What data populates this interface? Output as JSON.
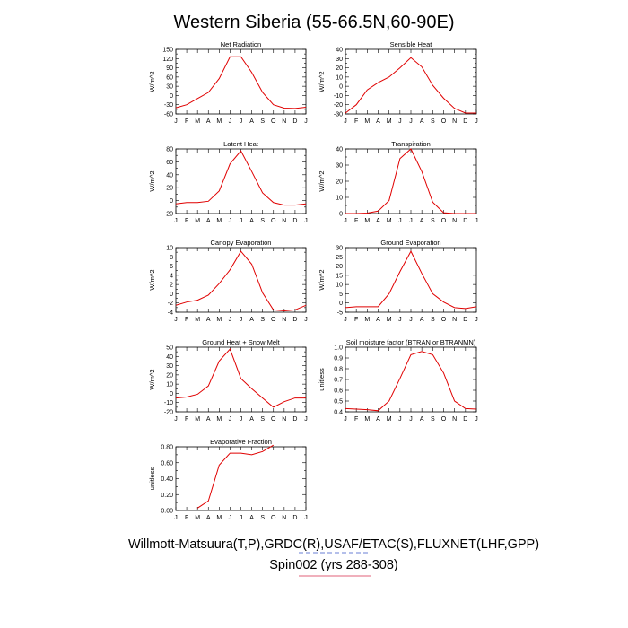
{
  "title": "Western Siberia (55-66.5N,60-90E)",
  "footer": {
    "line1": "Willmott-Matsuura(T,P),GRDC(R),USAF/ETAC(S),FLUXNET(LHF,GPP)",
    "line2": "Spin002 (yrs 288-308)"
  },
  "colors": {
    "series": "#e00000",
    "footer_line1_rule": "#3a56c7",
    "footer_line2_rule": "#e0607a"
  },
  "chart_data": [
    {
      "type": "line",
      "title": "Net Radiation",
      "ylabel": "W/m^2",
      "categories": [
        "J",
        "F",
        "M",
        "A",
        "M",
        "J",
        "J",
        "A",
        "S",
        "O",
        "N",
        "D",
        "J"
      ],
      "ylim": [
        -60,
        150
      ],
      "yticks": [
        -60,
        -45,
        -30,
        -15,
        0,
        15,
        30,
        45,
        60,
        75,
        90,
        105,
        120,
        135,
        150
      ],
      "ytick_labels": [
        "-60",
        "",
        "-30",
        "",
        "0",
        "",
        "30",
        "",
        "60",
        "",
        "90",
        "",
        "120",
        "",
        "150"
      ],
      "series": [
        {
          "values": [
            -40,
            -30,
            -10,
            10,
            55,
            126,
            126,
            75,
            10,
            -30,
            -41,
            -42,
            -38
          ]
        }
      ]
    },
    {
      "type": "line",
      "title": "Sensible Heat",
      "ylabel": "W/m^2",
      "categories": [
        "J",
        "F",
        "M",
        "A",
        "M",
        "J",
        "J",
        "A",
        "S",
        "O",
        "N",
        "D",
        "J"
      ],
      "ylim": [
        -30,
        40
      ],
      "yticks": [
        -30,
        -25,
        -20,
        -15,
        -10,
        -5,
        0,
        5,
        10,
        15,
        20,
        25,
        30,
        35,
        40
      ],
      "ytick_labels": [
        "-30",
        "",
        "-20",
        "",
        "-10",
        "",
        "0",
        "",
        "10",
        "",
        "20",
        "",
        "30",
        "",
        "40"
      ],
      "series": [
        {
          "values": [
            -29,
            -20,
            -4,
            4,
            10,
            20,
            31,
            21,
            1,
            -13,
            -24,
            -29,
            -29
          ]
        }
      ]
    },
    {
      "type": "line",
      "title": "Latent Heat",
      "ylabel": "W/m^2",
      "categories": [
        "J",
        "F",
        "M",
        "A",
        "M",
        "J",
        "J",
        "A",
        "S",
        "O",
        "N",
        "D",
        "J"
      ],
      "ylim": [
        -20,
        80
      ],
      "yticks": [
        -20,
        -10,
        0,
        10,
        20,
        30,
        40,
        50,
        60,
        70,
        80
      ],
      "ytick_labels": [
        "-20",
        "",
        "0",
        "",
        "20",
        "",
        "40",
        "",
        "60",
        "",
        "80"
      ],
      "series": [
        {
          "values": [
            -5,
            -3,
            -3,
            -1,
            15,
            57,
            77,
            45,
            12,
            -3,
            -7,
            -7,
            -5
          ]
        }
      ]
    },
    {
      "type": "line",
      "title": "Transpiration",
      "ylabel": "W/m^2",
      "categories": [
        "J",
        "F",
        "M",
        "A",
        "M",
        "J",
        "J",
        "A",
        "S",
        "O",
        "N",
        "D",
        "J"
      ],
      "ylim": [
        0,
        40
      ],
      "yticks": [
        0,
        5,
        10,
        15,
        20,
        25,
        30,
        35,
        40
      ],
      "ytick_labels": [
        "0",
        "",
        "10",
        "",
        "20",
        "",
        "30",
        "",
        "40"
      ],
      "series": [
        {
          "values": [
            0,
            0,
            0.3,
            1.5,
            8,
            34,
            40,
            26,
            7,
            0.5,
            0,
            0,
            0
          ]
        }
      ]
    },
    {
      "type": "line",
      "title": "Canopy Evaporation",
      "ylabel": "W/m^2",
      "categories": [
        "J",
        "F",
        "M",
        "A",
        "M",
        "J",
        "J",
        "A",
        "S",
        "O",
        "N",
        "D",
        "J"
      ],
      "ylim": [
        -4,
        10
      ],
      "yticks": [
        -4,
        -3,
        -2,
        -1,
        0,
        1,
        2,
        3,
        4,
        5,
        6,
        7,
        8,
        9,
        10
      ],
      "ytick_labels": [
        "-4",
        "",
        "-2",
        "",
        "0",
        "",
        "2",
        "",
        "4",
        "",
        "6",
        "",
        "8",
        "",
        "10"
      ],
      "series": [
        {
          "values": [
            -2.5,
            -1.8,
            -1.4,
            -0.3,
            2.2,
            5.2,
            9.2,
            6.4,
            0.2,
            -3.5,
            -3.7,
            -3.5,
            -2.5
          ]
        }
      ]
    },
    {
      "type": "line",
      "title": "Ground Evaporation",
      "ylabel": "W/m^2",
      "categories": [
        "J",
        "F",
        "M",
        "A",
        "M",
        "J",
        "J",
        "A",
        "S",
        "O",
        "N",
        "D",
        "J"
      ],
      "ylim": [
        -5,
        30
      ],
      "yticks": [
        -5,
        0,
        5,
        10,
        15,
        20,
        25,
        30
      ],
      "ytick_labels": [
        "-5",
        "0",
        "5",
        "10",
        "15",
        "20",
        "25",
        "30"
      ],
      "series": [
        {
          "values": [
            -2.5,
            -2,
            -2,
            -2,
            5,
            17,
            28,
            16,
            5,
            0.5,
            -2.5,
            -3,
            -2
          ]
        }
      ]
    },
    {
      "type": "line",
      "title": "Ground Heat + Snow Melt",
      "ylabel": "W/m^2",
      "categories": [
        "J",
        "F",
        "M",
        "A",
        "M",
        "J",
        "J",
        "A",
        "S",
        "O",
        "N",
        "D",
        "J"
      ],
      "ylim": [
        -20,
        50
      ],
      "yticks": [
        -20,
        -15,
        -10,
        -5,
        0,
        5,
        10,
        15,
        20,
        25,
        30,
        35,
        40,
        45,
        50
      ],
      "ytick_labels": [
        "-20",
        "",
        "-10",
        "",
        "0",
        "",
        "10",
        "",
        "20",
        "",
        "30",
        "",
        "40",
        "",
        "50"
      ],
      "series": [
        {
          "values": [
            -5,
            -4,
            -1,
            8,
            35,
            48,
            16,
            5,
            -5,
            -15,
            -9,
            -5,
            -5
          ]
        }
      ]
    },
    {
      "type": "line",
      "title": "Soil moisture factor (BTRAN or BTRANMN)",
      "ylabel": "unitless",
      "categories": [
        "J",
        "F",
        "M",
        "A",
        "M",
        "J",
        "J",
        "A",
        "S",
        "O",
        "N",
        "D",
        "J"
      ],
      "ylim": [
        0.4,
        1.0
      ],
      "yticks": [
        0.4,
        0.5,
        0.6,
        0.7,
        0.8,
        0.9,
        1.0
      ],
      "ytick_labels": [
        "0.4",
        "0.5",
        "0.6",
        "0.7",
        "0.8",
        "0.9",
        "1.0"
      ],
      "series": [
        {
          "values": [
            0.43,
            0.425,
            0.42,
            0.41,
            0.5,
            0.71,
            0.93,
            0.96,
            0.93,
            0.76,
            0.5,
            0.43,
            0.425
          ]
        }
      ]
    },
    {
      "type": "line",
      "title": "Evaporative Fraction",
      "ylabel": "unitless",
      "categories": [
        "J",
        "F",
        "M",
        "A",
        "M",
        "J",
        "J",
        "A",
        "S",
        "O",
        "N",
        "D",
        "J"
      ],
      "ylim": [
        0.0,
        0.8
      ],
      "yticks": [
        0.0,
        0.1,
        0.2,
        0.3,
        0.4,
        0.5,
        0.6,
        0.7,
        0.8
      ],
      "ytick_labels": [
        "0.00",
        "",
        "0.20",
        "",
        "0.40",
        "",
        "0.60",
        "",
        "0.80"
      ],
      "series": [
        {
          "values": [
            null,
            null,
            0.03,
            0.12,
            0.57,
            0.72,
            0.72,
            0.7,
            0.74,
            0.82,
            null,
            null,
            null
          ]
        }
      ]
    }
  ]
}
